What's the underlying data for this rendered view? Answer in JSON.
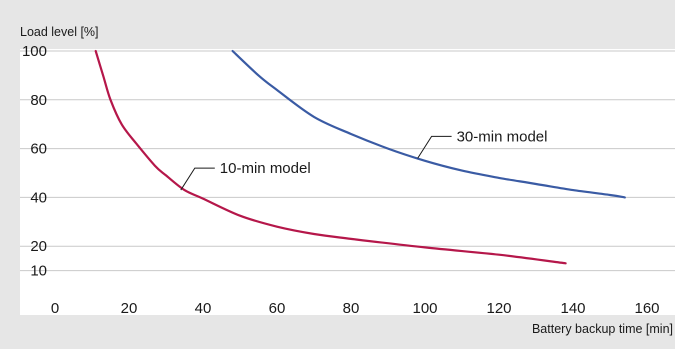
{
  "chart_data": {
    "type": "line",
    "title": "",
    "xlabel": "Battery backup time [min]",
    "ylabel": "Load level [%]",
    "xlim": [
      0,
      160
    ],
    "ylim": [
      0,
      100
    ],
    "xticks": [
      0,
      20,
      40,
      60,
      80,
      100,
      120,
      140,
      160
    ],
    "yticks": [
      10,
      20,
      40,
      60,
      80,
      100
    ],
    "grid": "horizontal",
    "legend": "none",
    "series": [
      {
        "name": "10-min model",
        "color": "#b5174a",
        "x": [
          11,
          13,
          15,
          18,
          22,
          27,
          30,
          35,
          40,
          50,
          60,
          70,
          80,
          100,
          120,
          138
        ],
        "y": [
          100,
          90,
          80,
          70,
          62,
          53,
          49,
          43,
          39.5,
          32.5,
          28,
          25,
          23,
          19.5,
          16.5,
          13
        ]
      },
      {
        "name": "30-min model",
        "color": "#3a5ba4",
        "x": [
          48,
          55,
          60,
          70,
          80,
          90,
          100,
          110,
          120,
          130,
          140,
          150,
          154
        ],
        "y": [
          100,
          90,
          84,
          73,
          66,
          60,
          55,
          51,
          48,
          45.5,
          43,
          41,
          40
        ]
      }
    ],
    "annotations": [
      {
        "text": "10-min model",
        "series": 0,
        "point": [
          34,
          43
        ]
      },
      {
        "text": "30-min model",
        "series": 1,
        "point": [
          98,
          56
        ]
      }
    ]
  }
}
